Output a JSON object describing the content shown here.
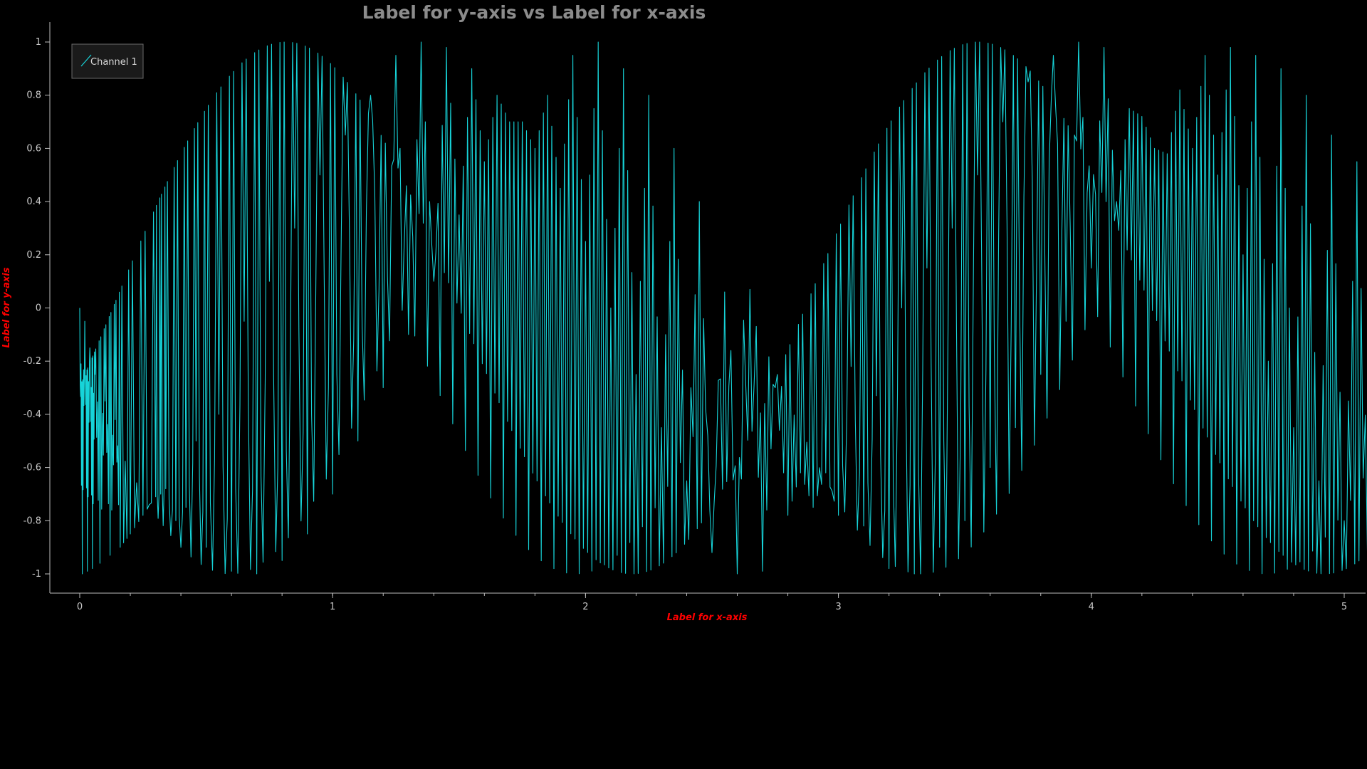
{
  "chart_data": {
    "type": "line",
    "title": "Label for y-axis vs Label for x-axis",
    "xlabel": "Label for x-axis",
    "ylabel": "Label for y-axis",
    "xlim": [
      -0.12,
      5.12
    ],
    "ylim": [
      -1.08,
      1.08
    ],
    "x_ticks": [
      "0",
      "1",
      "2",
      "3",
      "4",
      "5"
    ],
    "y_ticks": [
      "1",
      "0.8",
      "0.6",
      "0.4",
      "0.2",
      "0",
      "-0.2",
      "-0.4",
      "-0.6",
      "-0.8",
      "-1"
    ],
    "grid": false,
    "legend": {
      "position": "top-left",
      "entries": [
        "Channel 1"
      ]
    },
    "series": [
      {
        "name": "Channel 1",
        "color": "#17d4d9",
        "description_of_shape": "dense vertical oscillation between two envelopes",
        "x": [
          0.0,
          0.01,
          0.02,
          0.03,
          0.04,
          0.05,
          0.06,
          0.08,
          0.1,
          0.12,
          0.14,
          0.16,
          0.2,
          0.25,
          0.3,
          0.32,
          0.34,
          0.38,
          0.42,
          0.46,
          0.5,
          0.55,
          0.6,
          0.65,
          0.7,
          0.75,
          0.8,
          0.85,
          0.9,
          0.95,
          1.0,
          1.05,
          1.1,
          1.15,
          1.2,
          1.25,
          1.3,
          1.35,
          1.4,
          1.45,
          1.5,
          1.55,
          1.6,
          1.65,
          1.7,
          1.75,
          1.8,
          1.85,
          1.9,
          1.95,
          2.0,
          2.05,
          2.1,
          2.15,
          2.2,
          2.25,
          2.3,
          2.35,
          2.4,
          2.45,
          2.5,
          2.55,
          2.6,
          2.65,
          2.7,
          2.75,
          2.8,
          2.85,
          2.9,
          2.95,
          3.0,
          3.05,
          3.1,
          3.15,
          3.2,
          3.25,
          3.3,
          3.35,
          3.4,
          3.45,
          3.5,
          3.55,
          3.6,
          3.65,
          3.7,
          3.75,
          3.8,
          3.85,
          3.9,
          3.95,
          4.0,
          4.05,
          4.1,
          4.15,
          4.2,
          4.25,
          4.3,
          4.35,
          4.4,
          4.45,
          4.5,
          4.55,
          4.6,
          4.65,
          4.7,
          4.75,
          4.8,
          4.85,
          4.9,
          4.95,
          5.0,
          5.05,
          5.1
        ],
        "y": [
          0.0,
          -1.0,
          -0.05,
          -0.99,
          -0.15,
          -0.98,
          -0.25,
          -0.96,
          -0.35,
          -0.93,
          -0.42,
          -0.9,
          -0.85,
          -0.78,
          -0.71,
          -0.7,
          -0.68,
          -0.8,
          -0.75,
          -0.5,
          -0.9,
          -0.4,
          -0.99,
          -0.05,
          -1.0,
          0.1,
          -0.95,
          0.3,
          -0.85,
          0.5,
          -0.7,
          0.65,
          -0.5,
          0.8,
          -0.3,
          0.95,
          -0.1,
          1.0,
          0.1,
          0.98,
          0.35,
          0.9,
          0.55,
          0.8,
          0.7,
          0.7,
          0.6,
          0.8,
          0.45,
          0.95,
          0.25,
          1.0,
          0.0,
          0.9,
          -0.25,
          0.8,
          -0.45,
          0.6,
          -0.65,
          0.4,
          -0.92,
          0.06,
          -1.0,
          0.07,
          -0.99,
          -0.3,
          -0.78,
          -0.62,
          -0.75,
          -0.62,
          -0.78,
          -0.22,
          -0.82,
          -0.33,
          -0.98,
          0.0,
          -1.0,
          0.15,
          -0.9,
          0.3,
          -0.8,
          0.5,
          -0.6,
          0.7,
          -0.45,
          0.85,
          -0.25,
          0.95,
          -0.05,
          1.0,
          0.15,
          0.98,
          0.4,
          0.75,
          0.72,
          0.6,
          0.58,
          0.82,
          0.6,
          0.95,
          0.5,
          0.98,
          0.2,
          0.95,
          -0.2,
          0.9,
          -0.45,
          0.8,
          -0.65,
          0.65,
          -0.8,
          0.55,
          -0.88
        ]
      }
    ]
  }
}
